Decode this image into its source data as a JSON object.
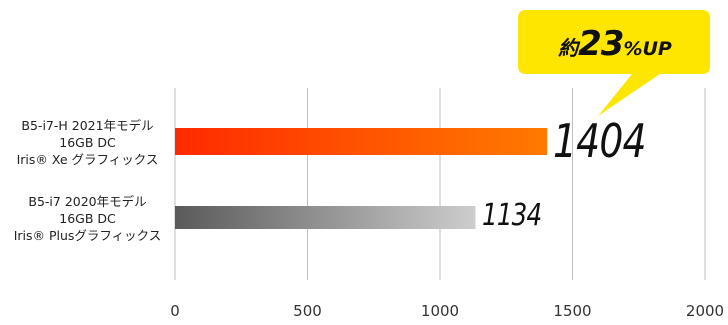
{
  "chart_data": {
    "type": "bar",
    "orientation": "horizontal",
    "categories": [
      {
        "lines": [
          "B5-i7-H 2021年モデル",
          "16GB DC",
          "Iris® Xe グラフィックス"
        ]
      },
      {
        "lines": [
          "B5-i7 2020年モデル",
          "16GB DC",
          "Iris® Plusグラフィックス"
        ]
      }
    ],
    "values": [
      1404,
      1134
    ],
    "value_labels": [
      "1404",
      "1134"
    ],
    "bar_colors": [
      {
        "from": "#ff2a00",
        "to": "#ff7a00"
      },
      {
        "from": "#5a5a5a",
        "to": "#cdcdcd"
      }
    ],
    "xlim": [
      0,
      2000
    ],
    "xticks": [
      {
        "value": 0,
        "label": "0"
      },
      {
        "value": 500,
        "label": "500"
      },
      {
        "value": 1000,
        "label": "1000"
      },
      {
        "value": 1500,
        "label": "1500"
      },
      {
        "value": 2000,
        "label": "2000"
      }
    ],
    "grid": true,
    "title": "",
    "xlabel": "",
    "ylabel": "",
    "callout": {
      "prefix": "約",
      "number": "23",
      "suffix": "%UP",
      "color": "#ffe600"
    }
  }
}
